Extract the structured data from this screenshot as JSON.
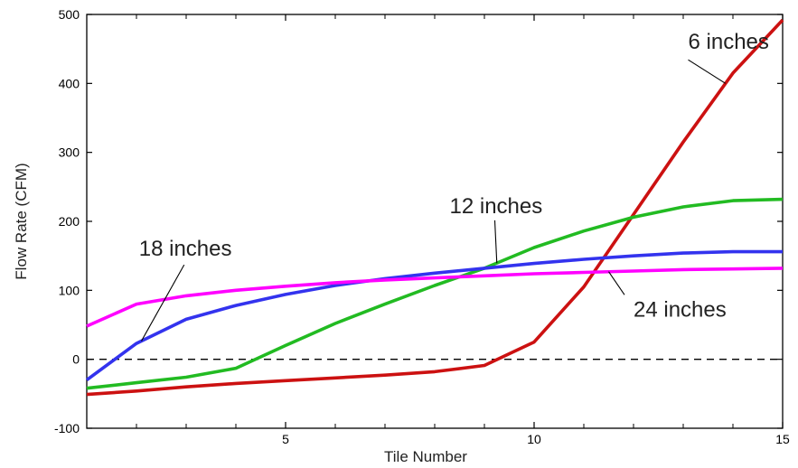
{
  "chart_data": {
    "type": "line",
    "title": "",
    "xlabel": "Tile Number",
    "ylabel": "Flow Rate (CFM)",
    "xlim": [
      1,
      15
    ],
    "ylim": [
      -100,
      500
    ],
    "xticks": [
      5,
      10,
      15
    ],
    "xticks_minor": [
      2,
      3,
      4,
      6,
      7,
      8,
      9,
      11,
      12,
      13,
      14
    ],
    "yticks": [
      -100,
      0,
      100,
      200,
      300,
      400,
      500
    ],
    "grid": false,
    "zero_line": {
      "y": 0,
      "style": "dashed",
      "color": "#000000"
    },
    "series": [
      {
        "name": "6 inches",
        "color": "#cc1111",
        "x": [
          1,
          2,
          3,
          4,
          5,
          6,
          7,
          8,
          9,
          10,
          11,
          12,
          13,
          14,
          15
        ],
        "y": [
          -51,
          -46,
          -40,
          -35,
          -31,
          -27,
          -23,
          -18,
          -9,
          25,
          105,
          210,
          315,
          415,
          492
        ]
      },
      {
        "name": "12 inches",
        "color": "#22bb22",
        "x": [
          1,
          2,
          3,
          4,
          5,
          6,
          7,
          8,
          9,
          10,
          11,
          12,
          13,
          14,
          15
        ],
        "y": [
          -42,
          -34,
          -26,
          -13,
          20,
          52,
          80,
          107,
          132,
          162,
          186,
          206,
          221,
          230,
          232
        ]
      },
      {
        "name": "18 inches",
        "color": "#3333ee",
        "x": [
          1,
          2,
          3,
          4,
          5,
          6,
          7,
          8,
          9,
          10,
          11,
          12,
          13,
          14,
          15
        ],
        "y": [
          -30,
          23,
          58,
          78,
          94,
          107,
          117,
          125,
          132,
          139,
          145,
          150,
          154,
          156,
          156
        ]
      },
      {
        "name": "24 inches",
        "color": "#ff00ff",
        "x": [
          1,
          2,
          3,
          4,
          5,
          6,
          7,
          8,
          9,
          10,
          11,
          12,
          13,
          14,
          15
        ],
        "y": [
          48,
          80,
          92,
          100,
          106,
          111,
          115,
          118,
          121,
          124,
          126,
          128,
          130,
          131,
          132
        ]
      }
    ],
    "annotations": [
      {
        "text": "6 inches",
        "series": "6 inches",
        "arrow_at_x": 13.85,
        "text_at": [
          13.1,
          450
        ]
      },
      {
        "text": "12 inches",
        "series": "12 inches",
        "arrow_at_x": 9.25,
        "text_at": [
          8.3,
          212
        ]
      },
      {
        "text": "18 inches",
        "series": "18 inches",
        "arrow_at_x": 2.1,
        "text_at": [
          2.05,
          150
        ]
      },
      {
        "text": "24 inches",
        "series": "24 inches",
        "arrow_at_x": 11.5,
        "text_at": [
          12.0,
          62
        ]
      }
    ]
  }
}
